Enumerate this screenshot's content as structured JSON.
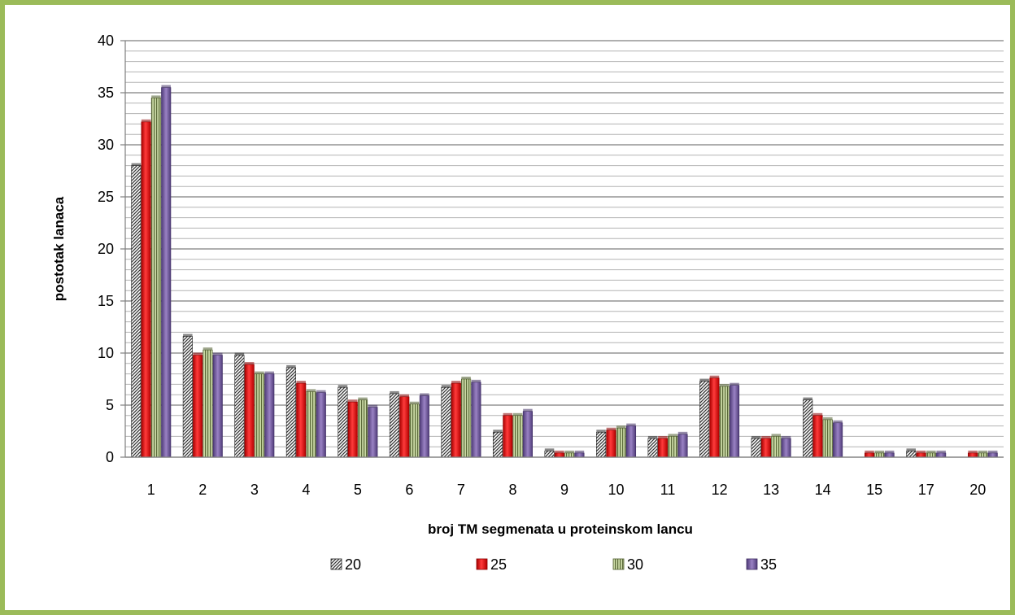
{
  "chart_data": {
    "type": "bar",
    "title": "",
    "xlabel": "broj TM segmenata u proteinskom lancu",
    "ylabel": "postotak lanaca",
    "ylim": [
      0,
      40
    ],
    "yticks": [
      0,
      5,
      10,
      15,
      20,
      25,
      30,
      35,
      40
    ],
    "minor_grid_step": 1,
    "grid": true,
    "legend_position": "bottom",
    "categories": [
      "1",
      "2",
      "3",
      "4",
      "5",
      "6",
      "7",
      "8",
      "9",
      "10",
      "11",
      "12",
      "13",
      "14",
      "15",
      "17",
      "20"
    ],
    "series": [
      {
        "name": "20",
        "color": "#404040",
        "pattern": "diagonal-hatch",
        "values": [
          28.0,
          11.6,
          9.8,
          8.6,
          6.7,
          6.1,
          6.7,
          2.4,
          0.6,
          2.4,
          1.8,
          7.3,
          1.8,
          5.5,
          0.0,
          0.6,
          0.0
        ]
      },
      {
        "name": "25",
        "color": "#e81e1e",
        "pattern": "vertical-bars",
        "values": [
          32.2,
          9.8,
          8.9,
          7.1,
          5.3,
          5.8,
          7.1,
          4.0,
          0.4,
          2.6,
          1.8,
          7.6,
          1.8,
          4.0,
          0.4,
          0.4,
          0.4
        ]
      },
      {
        "name": "30",
        "color": "#9bbb59",
        "pattern": "vertical-stripes",
        "values": [
          34.5,
          10.3,
          8.0,
          6.3,
          5.5,
          5.1,
          7.5,
          4.0,
          0.4,
          2.8,
          2.0,
          6.8,
          2.0,
          3.6,
          0.4,
          0.4,
          0.4
        ]
      },
      {
        "name": "35",
        "color": "#8064a2",
        "pattern": "solid",
        "values": [
          35.5,
          9.8,
          8.0,
          6.2,
          4.8,
          5.9,
          7.2,
          4.4,
          0.4,
          3.0,
          2.2,
          6.9,
          1.8,
          3.3,
          0.4,
          0.4,
          0.4
        ]
      }
    ]
  }
}
